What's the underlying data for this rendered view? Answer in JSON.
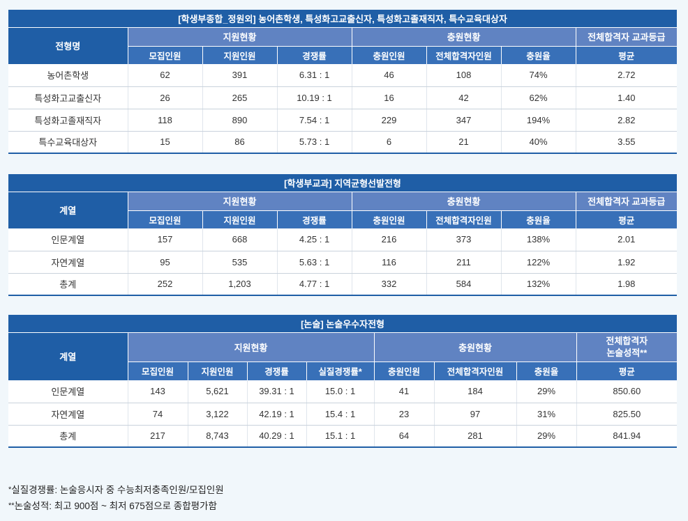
{
  "table1": {
    "caption": "[학생부종합_정원외] 농어촌학생, 특성화고교출신자, 특성화고졸재직자, 특수교육대상자",
    "row_header": "전형명",
    "groups": [
      "지원현황",
      "충원현황",
      "전체합격자 교과등급"
    ],
    "subheaders": [
      "모집인원",
      "지원인원",
      "경쟁률",
      "충원인원",
      "전체합격자인원",
      "충원율",
      "평균"
    ],
    "rows": [
      [
        "농어촌학생",
        "62",
        "391",
        "6.31 : 1",
        "46",
        "108",
        "74%",
        "2.72"
      ],
      [
        "특성화고교출신자",
        "26",
        "265",
        "10.19 : 1",
        "16",
        "42",
        "62%",
        "1.40"
      ],
      [
        "특성화고졸재직자",
        "118",
        "890",
        "7.54 : 1",
        "229",
        "347",
        "194%",
        "2.82"
      ],
      [
        "특수교육대상자",
        "15",
        "86",
        "5.73 : 1",
        "6",
        "21",
        "40%",
        "3.55"
      ]
    ]
  },
  "table2": {
    "caption": "[학생부교과] 지역균형선발전형",
    "row_header": "계열",
    "groups": [
      "지원현황",
      "충원현황",
      "전체합격자 교과등급"
    ],
    "subheaders": [
      "모집인원",
      "지원인원",
      "경쟁률",
      "충원인원",
      "전체합격자인원",
      "충원율",
      "평균"
    ],
    "rows": [
      [
        "인문계열",
        "157",
        "668",
        "4.25 : 1",
        "216",
        "373",
        "138%",
        "2.01"
      ],
      [
        "자연계열",
        "95",
        "535",
        "5.63 : 1",
        "116",
        "211",
        "122%",
        "1.92"
      ],
      [
        "총계",
        "252",
        "1,203",
        "4.77 : 1",
        "332",
        "584",
        "132%",
        "1.98"
      ]
    ]
  },
  "table3": {
    "caption": "[논술] 논술우수자전형",
    "row_header": "계열",
    "groups": [
      "지원현황",
      "충원현황"
    ],
    "group3_line1": "전체합격자",
    "group3_line2": "논술성적**",
    "subheaders": [
      "모집인원",
      "지원인원",
      "경쟁률",
      "실질경쟁률*",
      "충원인원",
      "전체합격자인원",
      "충원율",
      "평균"
    ],
    "rows": [
      [
        "인문계열",
        "143",
        "5,621",
        "39.31 : 1",
        "15.0 : 1",
        "41",
        "184",
        "29%",
        "850.60"
      ],
      [
        "자연계열",
        "74",
        "3,122",
        "42.19 : 1",
        "15.4 : 1",
        "23",
        "97",
        "31%",
        "825.50"
      ],
      [
        "총계",
        "217",
        "8,743",
        "40.29 : 1",
        "15.1 : 1",
        "64",
        "281",
        "29%",
        "841.94"
      ]
    ]
  },
  "notes": {
    "note1_mark": "*",
    "note1": "실질경쟁률: 논술응시자 중 수능최저충족인원/모집인원",
    "note2_mark": "**",
    "note2": "논술성적: 최고 900점 ~ 최저 675점으로 종합평가함"
  }
}
